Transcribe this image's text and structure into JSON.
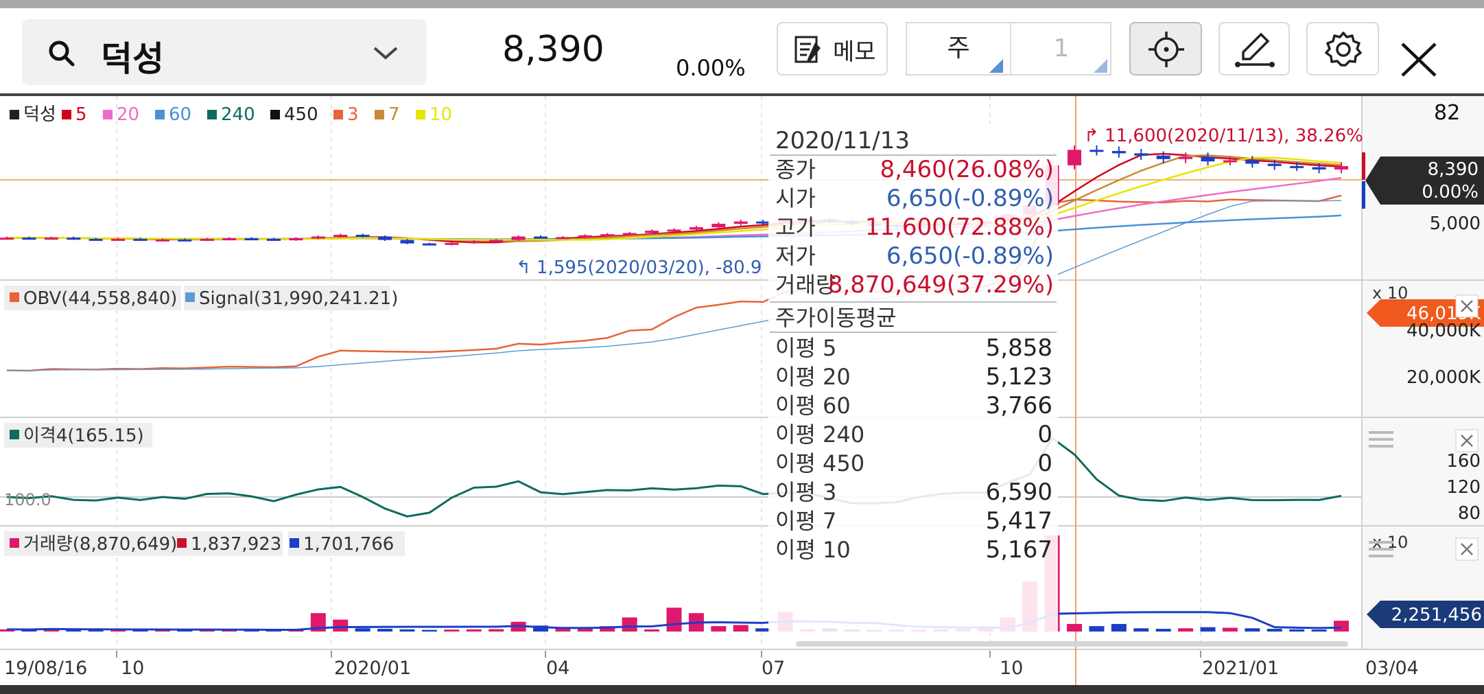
{
  "header": {
    "stock_name": "덕성",
    "price": "8,390",
    "change": "0.00%",
    "memo_label": "메모",
    "period_unit": "주",
    "period_count": "1"
  },
  "icons": [
    "search-icon",
    "chevron-down-icon",
    "memo-icon",
    "crosshair-icon",
    "draw-icon",
    "gear-icon",
    "close-icon"
  ],
  "colors": {
    "up": "#e0186c",
    "down": "#1a3fc6",
    "tooltip_up": "#c8102e",
    "tooltip_down": "#2f5fb0",
    "obv": "#e8623a",
    "signal": "#5b9bd5",
    "disparity": "#0e6b5e"
  },
  "legend": {
    "main": [
      {
        "label": "덕성",
        "color": "#222222"
      },
      {
        "label": "5",
        "color": "#d0021b"
      },
      {
        "label": "20",
        "color": "#f06acb"
      },
      {
        "label": "60",
        "color": "#4a90d9"
      },
      {
        "label": "240",
        "color": "#0e6b5e"
      },
      {
        "label": "450",
        "color": "#111111"
      },
      {
        "label": "3",
        "color": "#e8623a"
      },
      {
        "label": "7",
        "color": "#c98a3a"
      },
      {
        "label": "10",
        "color": "#e6e600"
      }
    ],
    "obv": "OBV(44,558,840)",
    "signal": "Signal(31,990,241.21)",
    "disparity": "이격4(165.15)",
    "volume": "거래량(8,870,649)",
    "volume_ma1": "1,837,923",
    "volume_ma2": "1,701,766"
  },
  "annotations": {
    "high": "11,600(2020/11/13), 38.26%",
    "low": "1,595(2020/03/20), -80.9"
  },
  "tooltip": {
    "date": "2020/11/13",
    "rows": [
      {
        "label": "종가",
        "value": "8,460(26.08%)",
        "dir": "up"
      },
      {
        "label": "시가",
        "value": "6,650(-0.89%)",
        "dir": "down"
      },
      {
        "label": "고가",
        "value": "11,600(72.88%)",
        "dir": "up"
      },
      {
        "label": "저가",
        "value": "6,650(-0.89%)",
        "dir": "down"
      },
      {
        "label": "거래량",
        "value": "8,870,649(37.29%)",
        "dir": "up"
      }
    ],
    "ma_title": "주가이동평균",
    "ma_rows": [
      {
        "label": "이평 5",
        "value": "5,858"
      },
      {
        "label": "이평 20",
        "value": "5,123"
      },
      {
        "label": "이평 60",
        "value": "3,766"
      },
      {
        "label": "이평 240",
        "value": "0"
      },
      {
        "label": "이평 450",
        "value": "0"
      },
      {
        "label": "이평 3",
        "value": "6,590"
      },
      {
        "label": "이평 7",
        "value": "5,417"
      },
      {
        "label": "이평 10",
        "value": "5,167"
      }
    ]
  },
  "right_axis": {
    "main_top": "82",
    "price_tag": "8,390",
    "pct_tag": "0.00%",
    "main_tick": "5,000",
    "obv_mult": "x 10",
    "obv_tag": "46,019K",
    "obv_ticks": [
      "40,000K",
      "20,000K"
    ],
    "disp_ticks": [
      "160",
      "120",
      "80"
    ],
    "vol_mult": "x 10",
    "vol_tag": "2,251,456",
    "disp_ref": "100.0"
  },
  "x_axis": {
    "labels": [
      "19/08/16",
      "10",
      "2020/01",
      "04",
      "07",
      "10",
      "2021/01",
      "03/04"
    ]
  },
  "chart_data": {
    "type": "candlestick",
    "title": "덕성",
    "interval": "weekly",
    "date_range": [
      "2019/08/16",
      "2021/03/04"
    ],
    "selected": {
      "date": "2020/11/13",
      "close": 8460,
      "open": 6650,
      "high": 11600,
      "low": 6650,
      "volume": 8870649
    },
    "last_price": 8390,
    "period_high": {
      "value": 11600,
      "date": "2020/11/13"
    },
    "period_low": {
      "value": 1595,
      "date": "2020/03/20"
    },
    "price_approx": [
      2200,
      2150,
      2200,
      2100,
      2050,
      2100,
      2000,
      2050,
      2000,
      2100,
      2150,
      2100,
      2000,
      2150,
      2300,
      2450,
      2300,
      2000,
      1700,
      1600,
      1750,
      1900,
      2000,
      2300,
      2200,
      2250,
      2400,
      2500,
      2600,
      2800,
      2900,
      3100,
      3400,
      3600,
      3500,
      3700,
      3800,
      3600,
      3400,
      3300,
      3200,
      3300,
      3400,
      3500,
      3600,
      4200,
      5000,
      8460,
      9800,
      9700,
      9500,
      9300,
      9000,
      9200,
      8800,
      8900,
      8600,
      8400,
      8300,
      8100,
      8390
    ],
    "volume_approx": [
      200,
      180,
      300,
      180,
      160,
      150,
      170,
      160,
      150,
      160,
      150,
      160,
      170,
      160,
      1700,
      1100,
      300,
      250,
      200,
      150,
      180,
      200,
      220,
      900,
      550,
      400,
      300,
      500,
      1300,
      200,
      2200,
      1700,
      500,
      600,
      300,
      1800,
      200,
      300,
      200,
      150,
      160,
      170,
      200,
      250,
      400,
      1300,
      4600,
      8870,
      700,
      500,
      700,
      300,
      250,
      300,
      400,
      350,
      300,
      250,
      200,
      180,
      1000
    ],
    "obv_current": 44558840,
    "signal_current": 31990241.21,
    "disparity_current": 165.15
  }
}
